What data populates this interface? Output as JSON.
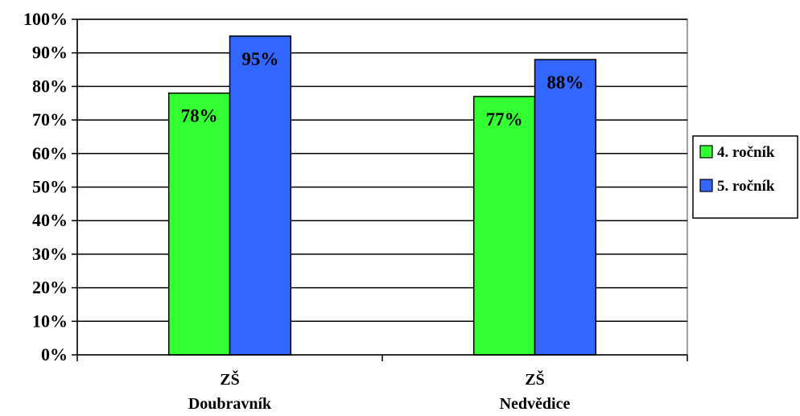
{
  "chart_data": {
    "type": "bar",
    "categories": [
      [
        "ZŠ",
        "Doubravník"
      ],
      [
        "ZŠ",
        "Nedvědice"
      ]
    ],
    "series": [
      {
        "name": "4. ročník",
        "values": [
          78,
          77
        ],
        "labels": [
          "78%",
          "77%"
        ],
        "color": "#33ff33"
      },
      {
        "name": "5. ročník",
        "values": [
          95,
          88
        ],
        "labels": [
          "95%",
          "88%"
        ],
        "color": "#3366ff"
      }
    ],
    "yticks": [
      0,
      10,
      20,
      30,
      40,
      50,
      60,
      70,
      80,
      90,
      100
    ],
    "ytick_labels": [
      "0%",
      "10%",
      "20%",
      "30%",
      "40%",
      "50%",
      "60%",
      "70%",
      "80%",
      "90%",
      "100%"
    ],
    "ylim": [
      0,
      100
    ],
    "grid": true,
    "legend_position": "right",
    "title": "",
    "xlabel": "",
    "ylabel": ""
  }
}
